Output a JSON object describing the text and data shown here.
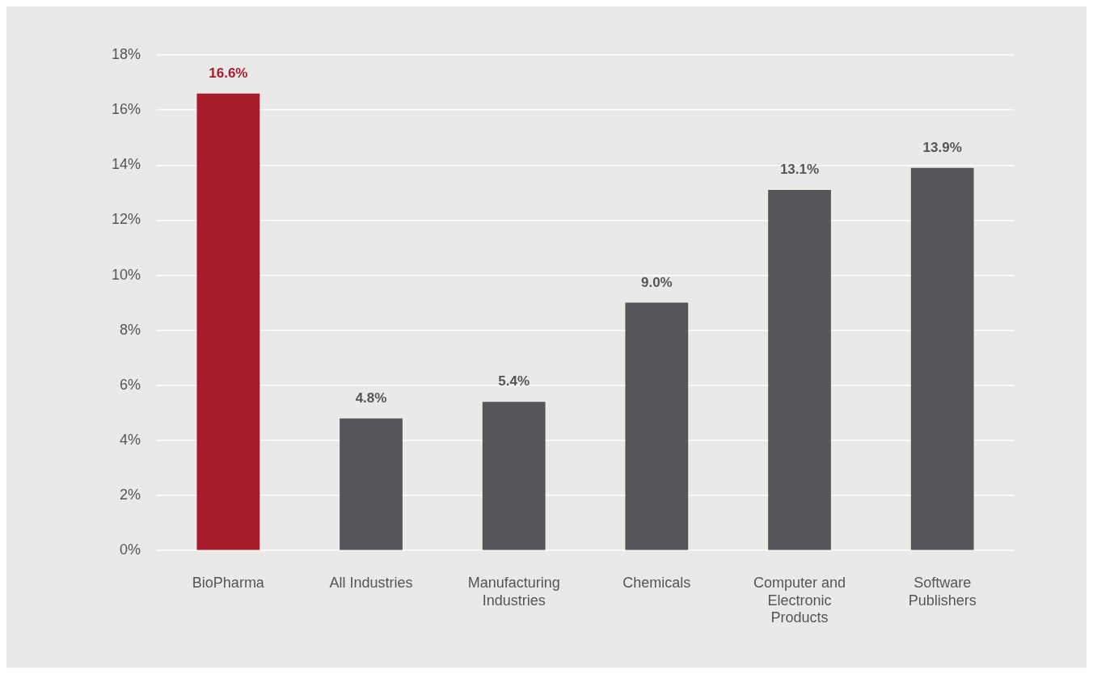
{
  "chart_data": {
    "type": "bar",
    "categories": [
      "BioPharma",
      "All Industries",
      "Manufacturing Industries",
      "Chemicals",
      "Computer and Electronic Products",
      "Software Publishers"
    ],
    "values": [
      16.6,
      4.8,
      5.4,
      9.0,
      13.1,
      13.9
    ],
    "colors": [
      "#a61c2c",
      "#545559",
      "#545559",
      "#545559",
      "#545559",
      "#545559"
    ],
    "value_labels": [
      "16.6%",
      "4.8%",
      "5.4%",
      "9.0%",
      "13.1%",
      "13.9%"
    ],
    "ylim": [
      0,
      18
    ],
    "yticks": [
      {
        "value": 0,
        "label": "0%"
      },
      {
        "value": 2,
        "label": "2%"
      },
      {
        "value": 4,
        "label": "4%"
      },
      {
        "value": 6,
        "label": "6%"
      },
      {
        "value": 8,
        "label": "8%"
      },
      {
        "value": 10,
        "label": "10%"
      },
      {
        "value": 12,
        "label": "12%"
      },
      {
        "value": 14,
        "label": "14%"
      },
      {
        "value": 16,
        "label": "16%"
      },
      {
        "value": 18,
        "label": "18%"
      }
    ],
    "grid": "y",
    "legend": false
  }
}
